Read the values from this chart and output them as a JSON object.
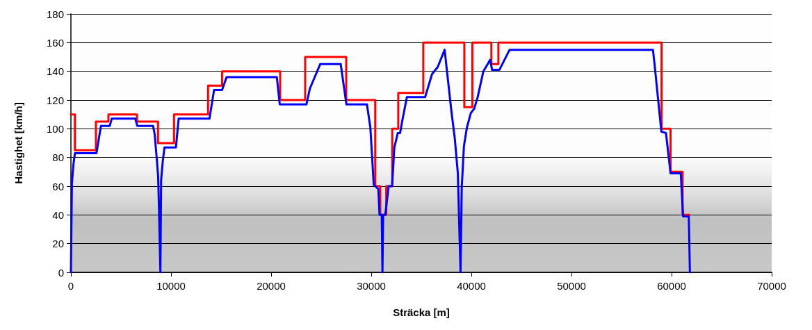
{
  "chart_data": {
    "type": "line",
    "xlabel": "Sträcka [m]",
    "ylabel": "Hastighet [km/h]",
    "xlim": [
      0,
      70000
    ],
    "xticks": [
      0,
      10000,
      20000,
      30000,
      40000,
      50000,
      60000,
      70000
    ],
    "ylim": [
      0,
      180
    ],
    "yticks": [
      0,
      20,
      40,
      60,
      80,
      100,
      120,
      140,
      160,
      180
    ],
    "grid": "y",
    "marker": "none",
    "line_style": "solid",
    "series": [
      {
        "type": "step",
        "color": "#ff0000",
        "x": [
          0,
          400,
          2500,
          3750,
          6600,
          8700,
          10300,
          13700,
          15100,
          20900,
          23400,
          27500,
          30400,
          30900,
          31500,
          32100,
          32700,
          35200,
          39300,
          40100,
          42000,
          42700,
          59000,
          59900,
          61100,
          61800
        ],
        "values": [
          110,
          85,
          105,
          110,
          105,
          90,
          110,
          130,
          140,
          120,
          150,
          120,
          60,
          40,
          60,
          100,
          125,
          160,
          115,
          160,
          145,
          160,
          100,
          70,
          40,
          40
        ]
      },
      {
        "type": "line",
        "color": "#0000ff",
        "x": [
          0,
          100,
          250,
          400,
          2550,
          3000,
          3880,
          4080,
          6430,
          6630,
          8210,
          8370,
          8600,
          8710,
          8780,
          8940,
          9010,
          9170,
          9350,
          10490,
          10760,
          13840,
          14300,
          15100,
          15550,
          20570,
          20860,
          23530,
          23870,
          24900,
          26950,
          27520,
          29570,
          29910,
          30250,
          30710,
          30830,
          31050,
          31120,
          31190,
          31400,
          31740,
          32080,
          32310,
          32650,
          32880,
          33110,
          33560,
          35380,
          36070,
          36640,
          37330,
          38010,
          38350,
          38650,
          38920,
          39040,
          39260,
          39560,
          39950,
          40290,
          40630,
          41200,
          41880,
          42070,
          42800,
          43820,
          58140,
          58300,
          58980,
          59440,
          59900,
          60920,
          61150,
          61720,
          61830
        ],
        "values": [
          0,
          62,
          75,
          83,
          83,
          102,
          102,
          107,
          107,
          102,
          102,
          96,
          77,
          67,
          50,
          0,
          64,
          77,
          87,
          87,
          107,
          107,
          127,
          127,
          136,
          136,
          117,
          117,
          128,
          145,
          145,
          117,
          117,
          101,
          61,
          58,
          40,
          40,
          0,
          40,
          40,
          60,
          60,
          87,
          97,
          97,
          106,
          122,
          122,
          138,
          143,
          155,
          112,
          93,
          69,
          0,
          59,
          88,
          101,
          111,
          114,
          122,
          140,
          148,
          141,
          141,
          155,
          155,
          145,
          98,
          97,
          69,
          69,
          39,
          39,
          0
        ]
      }
    ]
  }
}
